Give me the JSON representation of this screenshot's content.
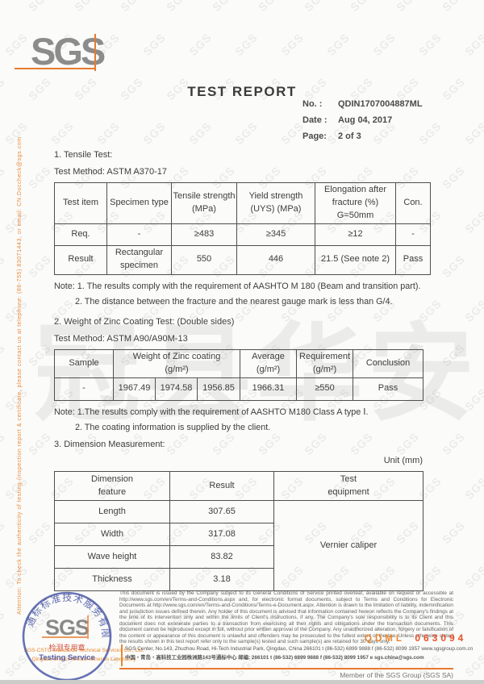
{
  "colors": {
    "accent_orange": "#e87a2e",
    "code_orange": "#e8872e",
    "code_red": "#e8542a",
    "stamp_blue": "#4553a4",
    "seal_red": "#cc4433"
  },
  "page": {
    "watermark_tile": "SGS",
    "watermark_cn": "冠县华安",
    "side_note": "Attention: To check the authenticity of testing /inspection report & certificate, please contact us at telephone: (86-755) 83071443, or email: CN.Doccheck@sgs.com"
  },
  "header": {
    "logo_text": "SGS",
    "title": "TEST REPORT",
    "info": {
      "no_label": "No. :",
      "no_value": "QDIN1707004887ML",
      "date_label": "Date :",
      "date_value": "Aug 04, 2017",
      "page_label": "Page:",
      "page_value": "2 of 3"
    }
  },
  "tensile": {
    "heading": "1. Tensile Test:",
    "method": "Test Method: ASTM A370-17",
    "table": {
      "headers": [
        "Test item",
        "Specimen type",
        "Tensile strength\n(MPa)",
        "Yield strength\n(UYS) (MPa)",
        "Elongation after\nfracture (%)\nG=50mm",
        "Con."
      ],
      "rows": [
        {
          "label": "Req.",
          "cells": [
            "-",
            "≥483",
            "≥345",
            "≥12",
            "-"
          ]
        },
        {
          "label": "Result",
          "cells": [
            "Rectangular\nspecimen",
            "550",
            "446",
            "21.5 (See note 2)",
            "Pass"
          ]
        }
      ]
    },
    "notes": [
      "Note: 1. The results comply with the requirement of AASHTO M 180 (Beam and transition part).",
      "2. The distance between the fracture and the nearest gauge mark is less than G/4."
    ]
  },
  "zinc": {
    "heading": "2. Weight of Zinc Coating Test: (Double sides)",
    "method": "Test Method: ASTM A90/A90M-13",
    "table": {
      "headers": {
        "sample": "Sample",
        "weight_group": "Weight of Zinc coating\n(g/m²)",
        "average": "Average\n(g/m²)",
        "requirement": "Requirement\n(g/m²)",
        "conclusion": "Conclusion"
      },
      "row": {
        "sample": "-",
        "values": [
          "1967.49",
          "1974.58",
          "1956.85"
        ],
        "average": "1966.31",
        "requirement": "≥550",
        "conclusion": "Pass"
      }
    },
    "notes": [
      "Note:  1.The results comply with the requirement of AASHTO M180 Class A type Ⅰ.",
      "2. The coating information is supplied by the client."
    ]
  },
  "dimension": {
    "heading": "3. Dimension Measurement:",
    "unit": "Unit (mm)",
    "table": {
      "headers": [
        "Dimension\nfeature",
        "Result",
        "Test\nequipment"
      ],
      "rows": [
        {
          "feature": "Length",
          "result": "307.65"
        },
        {
          "feature": "Width",
          "result": "317.08"
        },
        {
          "feature": "Wave height",
          "result": "83.82"
        },
        {
          "feature": "Thickness",
          "result": "3.18"
        }
      ],
      "equipment": "Vernier caliper"
    }
  },
  "footer": {
    "disclaimer": "This document is issued by the Company subject to its General Conditions of Service printed overleaf, available on request or accessible at http://www.sgs.com/en/Terms-and-Conditions.aspx and, for electronic format documents, subject to Terms and Conditions for Electronic Documents at http://www.sgs.com/en/Terms-and-Conditions/Terms-e-Document.aspx. Attention is drawn to the limitation of liability, indemnification and jurisdiction issues defined therein. Any holder of this document is advised that information contained hereon reflects the Company's findings at the time of its intervention only and within the limits of Client's instructions, if any. The Company's sole responsibility is to its Client and this document does not exonerate parties to a transaction from exercising all their rights and obligations under the transaction documents. This document cannot be reproduced except in full, without prior written approval of the Company. Any unauthorized alteration, forgery or falsification of the content or appearance of this document is unlawful and offenders may be prosecuted to the fullest extent of the law. Unless otherwise stated the results shown in this test report refer only to the sample(s) tested and such sample(s) are retained for 30 days only.",
    "code_label": "QDML",
    "code_number": "063094",
    "stamp": {
      "ring_text": "通标标准技术服务有限公司",
      "logo_text": "SGS",
      "seal_label": "检测专用章",
      "service_label": "Testing Service"
    },
    "company_line1": "SGS-CSTC Standards Technical Services Co., Ltd.",
    "company_line2": "Qingdao Branch Metals Minerals Laboratory",
    "address_en": "SGS Center, No.143, Zhuzhou Road, Hi-Tech Industrial Park, Qingdao, China 266101   t (86-532) 6899 9888   f (86-532) 8099 1957   www.sgsgroup.com.cn",
    "address_cn": "中国・青岛・高科技工业园株洲路143号通标中心   邮编: 266101   t (86-532) 6899 9888   f (86-532) 8099 1957   e sgs.china@sgs.com",
    "member": "Member of the SGS Group (SGS SA)"
  }
}
